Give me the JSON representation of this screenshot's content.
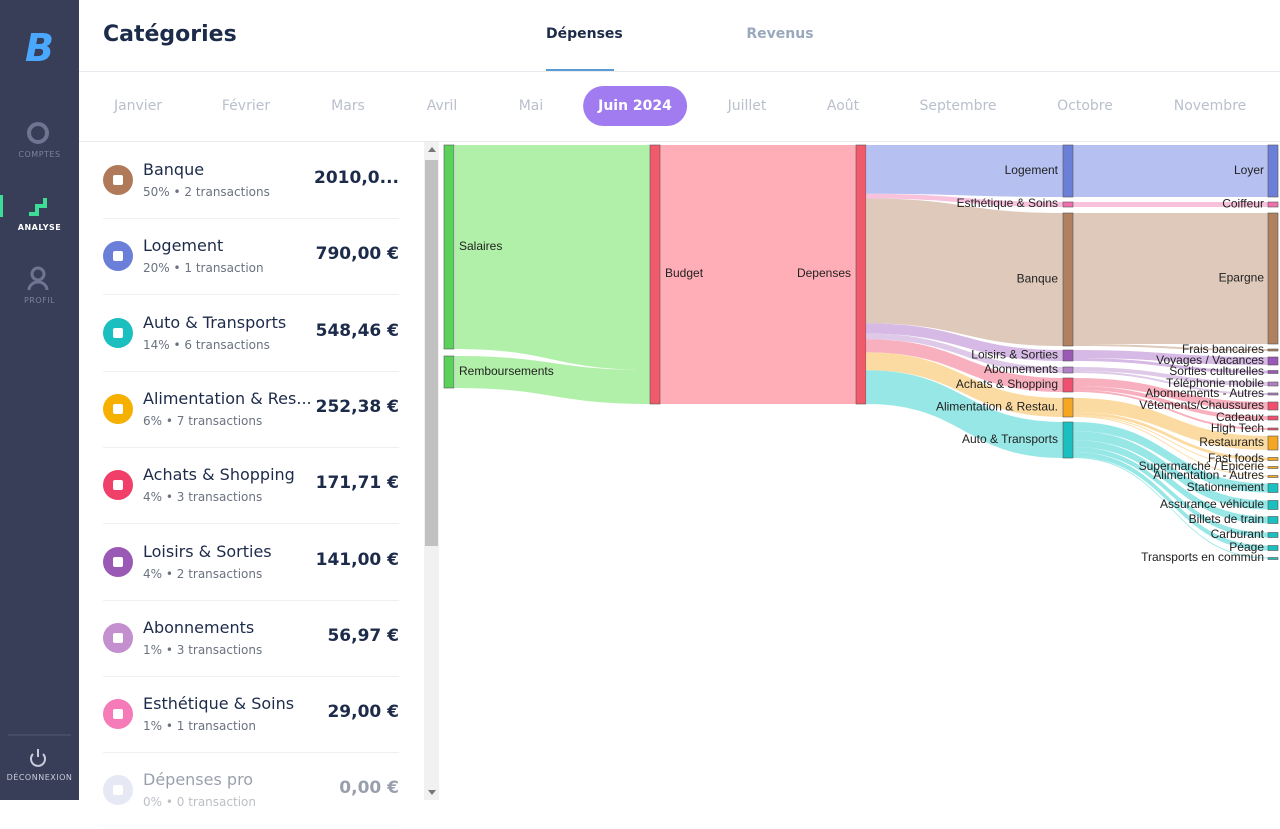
{
  "sidebar": {
    "logo": "B",
    "nav": [
      "COMPTES",
      "ANALYSE",
      "PROFIL"
    ],
    "logout": "DÉCONNEXION"
  },
  "header": {
    "title": "Catégories",
    "tabs": [
      "Dépenses",
      "Revenus"
    ]
  },
  "months": [
    "Janvier",
    "Février",
    "Mars",
    "Avril",
    "Mai",
    "Juin 2024",
    "Juillet",
    "Août",
    "Septembre",
    "Octobre",
    "Novembre"
  ],
  "categories": [
    {
      "name": "Banque",
      "detail": "50% • 2 transactions",
      "amount": "2010,0..."
    },
    {
      "name": "Logement",
      "detail": "20% • 1 transaction",
      "amount": "790,00 €"
    },
    {
      "name": "Auto & Transports",
      "detail": "14% • 6 transactions",
      "amount": "548,46 €"
    },
    {
      "name": "Alimentation & Res...",
      "detail": "6% • 7 transactions",
      "amount": "252,38 €"
    },
    {
      "name": "Achats & Shopping",
      "detail": "4% • 3 transactions",
      "amount": "171,71 €"
    },
    {
      "name": "Loisirs & Sorties",
      "detail": "4% • 2 transactions",
      "amount": "141,00 €"
    },
    {
      "name": "Abonnements",
      "detail": "1% • 3 transactions",
      "amount": "56,97 €"
    },
    {
      "name": "Esthétique & Soins",
      "detail": "1% • 1 transaction",
      "amount": "29,00 €"
    },
    {
      "name": "Dépenses pro",
      "detail": "0% • 0 transaction",
      "amount": "0,00 €"
    }
  ],
  "sankey": {
    "sources": [
      "Salaires",
      "Remboursements"
    ],
    "budget": "Budget",
    "depenses": "Depenses",
    "groups": [
      "Logement",
      "Esthétique & Soins",
      "Banque",
      "Loisirs & Sorties",
      "Abonnements",
      "Achats & Shopping",
      "Alimentation & Restau.",
      "Auto & Transports"
    ],
    "subcategories": [
      "Loyer",
      "Coiffeur",
      "Epargne",
      "Frais bancaires",
      "Voyages / Vacances",
      "Sorties culturelles",
      "Téléphonie mobile",
      "Abonnements - Autres",
      "Vêtements/Chaussures",
      "Cadeaux",
      "High Tech",
      "Restaurants",
      "Fast foods",
      "Supermarché / Epicerie",
      "Alimentation - Autres",
      "Stationnement",
      "Assurance véhicule",
      "Billets de train",
      "Carburant",
      "Péage",
      "Transports en commun"
    ]
  }
}
